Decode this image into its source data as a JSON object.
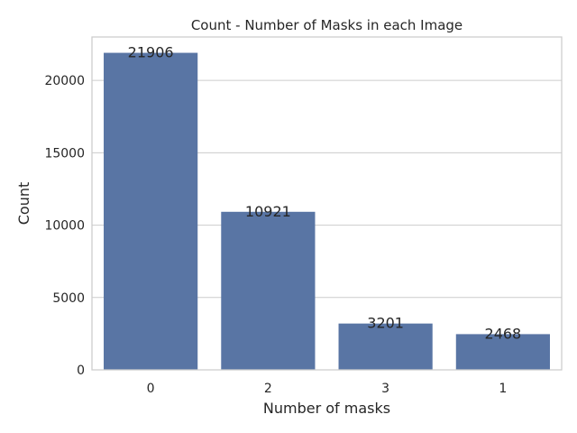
{
  "chart_data": {
    "type": "bar",
    "title": "Count - Number of Masks in each Image",
    "xlabel": "Number of masks",
    "ylabel": "Count",
    "categories": [
      "0",
      "2",
      "3",
      "1"
    ],
    "values": [
      21906,
      10921,
      3201,
      2468
    ],
    "data_labels": [
      "21906",
      "10921",
      "3201",
      "2468"
    ],
    "ylim": [
      0,
      23000
    ],
    "yticks": [
      0,
      5000,
      10000,
      15000,
      20000
    ],
    "ytick_labels": [
      "0",
      "5000",
      "10000",
      "15000",
      "20000"
    ],
    "grid": true,
    "bar_color": "#5975a4"
  }
}
